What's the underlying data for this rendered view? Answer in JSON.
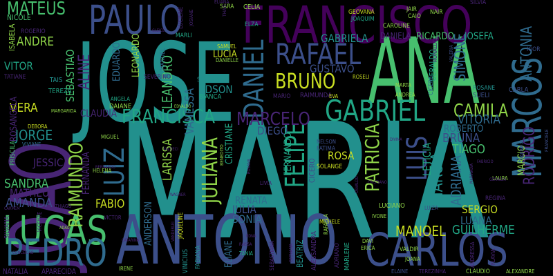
{
  "palette": {
    "background": "#000000",
    "yellow": "#c9de22",
    "lime": "#8fd448",
    "green": "#47bf6e",
    "teal": "#21a685",
    "cyan": "#22908d",
    "blue": "#2f6b8e",
    "indigo": "#3c4f8a",
    "purple": "#482575",
    "darkpurple": "#44015a"
  },
  "words": [
    {
      "text": "MARIA",
      "color": "cyan"
    },
    {
      "text": "JOSE",
      "color": "cyan"
    },
    {
      "text": "ANA",
      "color": "green"
    },
    {
      "text": "ANTONIO",
      "color": "indigo"
    },
    {
      "text": "JOAO",
      "color": "purple"
    },
    {
      "text": "FRANCISCO",
      "color": "darkpurple"
    },
    {
      "text": "CARLOS",
      "color": "indigo"
    },
    {
      "text": "LUCAS",
      "color": "green"
    },
    {
      "text": "PAULO",
      "color": "indigo"
    },
    {
      "text": "PEDRO",
      "color": "blue"
    },
    {
      "text": "MARCOS",
      "color": "blue"
    },
    {
      "text": "RAFAEL",
      "color": "indigo"
    },
    {
      "text": "GABRIEL",
      "color": "teal"
    },
    {
      "text": "FRANCISCA",
      "color": "teal"
    },
    {
      "text": "LUIZ",
      "color": "blue"
    },
    {
      "text": "RAIMUNDO",
      "color": "lime"
    },
    {
      "text": "DANIEL",
      "color": "blue"
    },
    {
      "text": "BRUNO",
      "color": "yellow"
    },
    {
      "text": "MATEUS",
      "color": "green"
    },
    {
      "text": "RODRIGO",
      "color": "purple"
    },
    {
      "text": "ANTONIA",
      "color": "blue"
    },
    {
      "text": "LUIS",
      "color": "indigo"
    },
    {
      "text": "FELIPE",
      "color": "teal"
    },
    {
      "text": "JULIANA",
      "color": "lime"
    },
    {
      "text": "PATRICIA",
      "color": "lime"
    },
    {
      "text": "MARCELO",
      "color": "purple"
    },
    {
      "text": "CAMILA",
      "color": "lime"
    },
    {
      "text": "ANDRE",
      "color": "lime"
    },
    {
      "text": "ALINE",
      "color": "purple"
    },
    {
      "text": "SEBASTIAO",
      "color": "green"
    },
    {
      "text": "JORGE",
      "color": "cyan"
    },
    {
      "text": "AMANDA",
      "color": "indigo"
    },
    {
      "text": "VERA",
      "color": "yellow"
    },
    {
      "text": "SANDRA",
      "color": "green"
    },
    {
      "text": "FABIO",
      "color": "yellow"
    },
    {
      "text": "MANOEL",
      "color": "yellow"
    },
    {
      "text": "MARCIA",
      "color": "cyan"
    },
    {
      "text": "ADRIANA",
      "color": "blue"
    },
    {
      "text": "GUILHERME",
      "color": "teal"
    },
    {
      "text": "SIMONE",
      "color": "blue"
    },
    {
      "text": "GABRIELA",
      "color": "cyan"
    },
    {
      "text": "GUSTAVO",
      "color": "indigo"
    },
    {
      "text": "LEANDRO",
      "color": "green"
    },
    {
      "text": "VITORIA",
      "color": "blue"
    },
    {
      "text": "BRUNA",
      "color": "indigo"
    },
    {
      "text": "TIAGO",
      "color": "green"
    },
    {
      "text": "DIEGO",
      "color": "indigo"
    },
    {
      "text": "ROBERTO",
      "color": "blue"
    },
    {
      "text": "SERGIO",
      "color": "yellow"
    },
    {
      "text": "SONIA",
      "color": "blue"
    },
    {
      "text": "JULIA",
      "color": "indigo"
    },
    {
      "text": "RENATA",
      "color": "blue"
    },
    {
      "text": "VANESSA",
      "color": "blue"
    },
    {
      "text": "LARISSA",
      "color": "lime"
    },
    {
      "text": "EDSON",
      "color": "cyan"
    },
    {
      "text": "LUCIA",
      "color": "yellow"
    },
    {
      "text": "JESSICA",
      "color": "purple"
    },
    {
      "text": "CLAUDIA",
      "color": "purple"
    },
    {
      "text": "VITOR",
      "color": "teal"
    },
    {
      "text": "MATHEUS",
      "color": "purple"
    },
    {
      "text": "ROSA",
      "color": "yellow"
    },
    {
      "text": "LUANA",
      "color": "blue"
    },
    {
      "text": "CRISTIANE",
      "color": "teal"
    },
    {
      "text": "LETICIA",
      "color": "teal"
    },
    {
      "text": "FERNANDA",
      "color": "purple"
    },
    {
      "text": "ELIANE",
      "color": "blue"
    },
    {
      "text": "FERNANDO",
      "color": "teal"
    },
    {
      "text": "ANDERSON",
      "color": "blue"
    },
    {
      "text": "EDUARDO",
      "color": "blue"
    },
    {
      "text": "LEONARDO",
      "color": "lime"
    },
    {
      "text": "MARCIO",
      "color": "lime"
    },
    {
      "text": "JOSEFA",
      "color": "teal"
    },
    {
      "text": "RICARDO",
      "color": "green"
    },
    {
      "text": "DANIELA",
      "color": "purple"
    },
    {
      "text": "CELIA",
      "color": "lime"
    },
    {
      "text": "GERALDO",
      "color": "teal"
    },
    {
      "text": "ISABELA",
      "color": "lime"
    },
    {
      "text": "ROGERIO",
      "color": "purple"
    },
    {
      "text": "NICOLE",
      "color": "green"
    },
    {
      "text": "GEOVANA",
      "color": "yellow"
    },
    {
      "text": "JOAQUIM",
      "color": "teal"
    },
    {
      "text": "CAIO",
      "color": "lime"
    },
    {
      "text": "CAROLINE",
      "color": "lime"
    },
    {
      "text": "NAIR",
      "color": "lime"
    },
    {
      "text": "JAIR",
      "color": "lime"
    },
    {
      "text": "SILVIA",
      "color": "purple"
    },
    {
      "text": "SARA",
      "color": "lime"
    },
    {
      "text": "ELZA",
      "color": "teal"
    },
    {
      "text": "ELIANA",
      "color": "purple"
    },
    {
      "text": "LUCIENE",
      "color": "purple"
    },
    {
      "text": "MARLI",
      "color": "teal"
    },
    {
      "text": "TATIANE",
      "color": "purple"
    },
    {
      "text": "TAIS",
      "color": "cyan"
    },
    {
      "text": "TEREZA",
      "color": "teal"
    },
    {
      "text": "SAMUEL",
      "color": "yellow"
    },
    {
      "text": "DANIELLE",
      "color": "lime"
    },
    {
      "text": "ANGELA",
      "color": "teal"
    },
    {
      "text": "DAIANE",
      "color": "lime"
    },
    {
      "text": "SEVERINO",
      "color": "purple"
    },
    {
      "text": "MANUEL",
      "color": "blue"
    },
    {
      "text": "SEVERINA",
      "color": "cyan"
    },
    {
      "text": "BIANCA",
      "color": "teal"
    },
    {
      "text": "RAIMUNDA",
      "color": "purple"
    },
    {
      "text": "EVA",
      "color": "yellow"
    },
    {
      "text": "MARIO",
      "color": "purple"
    },
    {
      "text": "MARTA",
      "color": "lime"
    },
    {
      "text": "ANDREA",
      "color": "lime"
    },
    {
      "text": "ROSELI",
      "color": "yellow"
    },
    {
      "text": "ROSANE",
      "color": "cyan"
    },
    {
      "text": "SUELI",
      "color": "indigo"
    },
    {
      "text": "CARLA",
      "color": "indigo"
    },
    {
      "text": "CICERA",
      "color": "blue"
    },
    {
      "text": "IGOR",
      "color": "indigo"
    },
    {
      "text": "RONALDO",
      "color": "purple"
    },
    {
      "text": "VALERIA",
      "color": "indigo"
    },
    {
      "text": "MARGARIDA",
      "color": "lime"
    },
    {
      "text": "ROSANGELA",
      "color": "purple"
    },
    {
      "text": "DEBORA",
      "color": "yellow"
    },
    {
      "text": "VIVIANE",
      "color": "blue"
    },
    {
      "text": "PRISCILA",
      "color": "green"
    },
    {
      "text": "MIGUEL",
      "color": "lime"
    },
    {
      "text": "HELENA",
      "color": "lime"
    },
    {
      "text": "NELSON",
      "color": "indigo"
    },
    {
      "text": "FATIMA",
      "color": "indigo"
    },
    {
      "text": "SOLANGE",
      "color": "yellow"
    },
    {
      "text": "CICERO",
      "color": "indigo"
    },
    {
      "text": "LIVIA",
      "color": "purple"
    },
    {
      "text": "LAURA",
      "color": "lime"
    },
    {
      "text": "REGINA",
      "color": "purple"
    },
    {
      "text": "LUIZA",
      "color": "indigo"
    },
    {
      "text": "LUCIANO",
      "color": "lime"
    },
    {
      "text": "MICHELE",
      "color": "yellow"
    },
    {
      "text": "IVONE",
      "color": "lime"
    },
    {
      "text": "RAFAELA",
      "color": "lime"
    },
    {
      "text": "BEATRIZ",
      "color": "cyan"
    },
    {
      "text": "ALESSANDRA",
      "color": "purple"
    },
    {
      "text": "ADRIANO",
      "color": "purple"
    },
    {
      "text": "MARLENE",
      "color": "teal"
    },
    {
      "text": "DAVI",
      "color": "lime"
    },
    {
      "text": "ERICA",
      "color": "lime"
    },
    {
      "text": "VALDIR",
      "color": "lime"
    },
    {
      "text": "ANDRESSA",
      "color": "purple"
    },
    {
      "text": "FLAVIA",
      "color": "purple"
    },
    {
      "text": "JOANA",
      "color": "lime"
    },
    {
      "text": "ELAINE",
      "color": "indigo"
    },
    {
      "text": "TEREZINHA",
      "color": "purple"
    },
    {
      "text": "CLAUDIO",
      "color": "lime"
    },
    {
      "text": "ALEXANDRE",
      "color": "lime"
    },
    {
      "text": "NATALIA",
      "color": "purple"
    },
    {
      "text": "APARECIDA",
      "color": "purple"
    },
    {
      "text": "IRENE",
      "color": "lime"
    },
    {
      "text": "VINICIUS",
      "color": "cyan"
    },
    {
      "text": "FABIANA",
      "color": "cyan"
    },
    {
      "text": "TANIA",
      "color": "teal"
    },
    {
      "text": "SEBASTIANA",
      "color": "purple"
    },
    {
      "text": "GIOVANA",
      "color": "purple"
    },
    {
      "text": "VICTOR",
      "color": "purple"
    },
    {
      "text": "SILVANA",
      "color": "purple"
    },
    {
      "text": "JAQUELINE",
      "color": "yellow"
    },
    {
      "text": "ADAO",
      "color": "lime"
    },
    {
      "text": "VICENTE",
      "color": "purple"
    },
    {
      "text": "THIAGO",
      "color": "purple"
    },
    {
      "text": "EDVALDO",
      "color": "lime"
    },
    {
      "text": "BENEDITO",
      "color": "lime"
    },
    {
      "text": "CARMEM",
      "color": "purple"
    },
    {
      "text": "FRANCIELE",
      "color": "indigo"
    },
    {
      "text": "GABRIELE",
      "color": "indigo"
    },
    {
      "text": "GERALDA",
      "color": "purple"
    },
    {
      "text": "CRISTIANO",
      "color": "purple"
    },
    {
      "text": "VALDECI",
      "color": "purple"
    },
    {
      "text": "ROSANA",
      "color": "purple"
    },
    {
      "text": "RAISSA",
      "color": "purple"
    },
    {
      "text": "JOSIANE",
      "color": "purple"
    },
    {
      "text": "THAIS",
      "color": "purple"
    },
    {
      "text": "MARINALVA",
      "color": "purple"
    },
    {
      "text": "WAGNER",
      "color": "purple"
    },
    {
      "text": "DIVINA",
      "color": "purple"
    },
    {
      "text": "BERNARDO",
      "color": "purple"
    },
    {
      "text": "CONCEICAO",
      "color": "purple"
    },
    {
      "text": "EDNA",
      "color": "purple"
    },
    {
      "text": "CATARINA",
      "color": "purple"
    },
    {
      "text": "OSVALDO",
      "color": "purple"
    },
    {
      "text": "FABRICIO",
      "color": "purple"
    },
    {
      "text": "GLEICE",
      "color": "purple"
    },
    {
      "text": "VANDERLEI",
      "color": "purple"
    }
  ]
}
